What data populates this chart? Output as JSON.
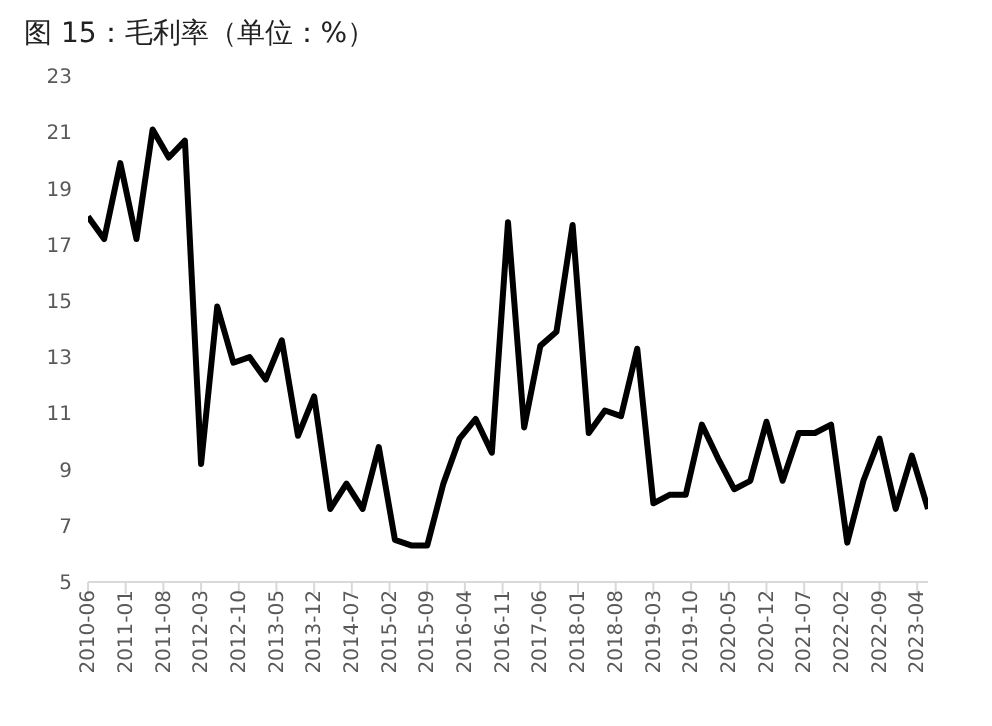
{
  "chart_data": {
    "type": "line",
    "title": "图 15：毛利率（单位：%）",
    "x": [
      "2010-06",
      "2010-09",
      "2010-12",
      "2011-03",
      "2011-06",
      "2011-09",
      "2011-12",
      "2012-03",
      "2012-06",
      "2012-09",
      "2012-12",
      "2013-03",
      "2013-06",
      "2013-09",
      "2013-12",
      "2014-03",
      "2014-06",
      "2014-09",
      "2014-12",
      "2015-03",
      "2015-06",
      "2015-09",
      "2015-12",
      "2016-03",
      "2016-06",
      "2016-09",
      "2016-12",
      "2017-03",
      "2017-06",
      "2017-09",
      "2017-12",
      "2018-03",
      "2018-06",
      "2018-09",
      "2018-12",
      "2019-03",
      "2019-06",
      "2019-09",
      "2019-12",
      "2020-03",
      "2020-06",
      "2020-09",
      "2020-12",
      "2021-03",
      "2021-06",
      "2021-09",
      "2021-12",
      "2022-03",
      "2022-06",
      "2022-09",
      "2022-12",
      "2023-03",
      "2023-06"
    ],
    "series": [
      {
        "color": "#000000",
        "values": [
          18.0,
          17.2,
          19.9,
          17.2,
          21.1,
          20.1,
          20.7,
          9.2,
          14.8,
          12.8,
          13.0,
          12.2,
          13.6,
          10.2,
          11.6,
          7.6,
          8.5,
          7.6,
          9.8,
          6.5,
          6.3,
          6.3,
          8.5,
          10.1,
          10.8,
          9.6,
          17.8,
          10.5,
          13.4,
          13.9,
          17.7,
          10.3,
          11.1,
          10.9,
          13.3,
          7.8,
          8.1,
          8.1,
          10.6,
          9.4,
          8.3,
          8.6,
          10.7,
          8.6,
          10.3,
          10.3,
          10.6,
          6.4,
          8.6,
          10.1,
          7.6,
          9.5,
          7.6
        ]
      }
    ],
    "xlim": [
      "2010-06",
      "2023-06"
    ],
    "xticks": [
      "2010-06",
      "2011-01",
      "2011-08",
      "2012-03",
      "2012-10",
      "2013-05",
      "2013-12",
      "2014-07",
      "2015-02",
      "2015-09",
      "2016-04",
      "2016-11",
      "2017-06",
      "2018-01",
      "2018-08",
      "2019-03",
      "2019-10",
      "2020-05",
      "2020-12",
      "2021-07",
      "2022-02",
      "2022-09",
      "2023-04"
    ],
    "ylim": [
      5,
      23
    ],
    "yticks": [
      5,
      7,
      9,
      11,
      13,
      15,
      17,
      19,
      21,
      23
    ],
    "grid": false,
    "legend": false,
    "marker": "none",
    "line_style": "solid"
  }
}
